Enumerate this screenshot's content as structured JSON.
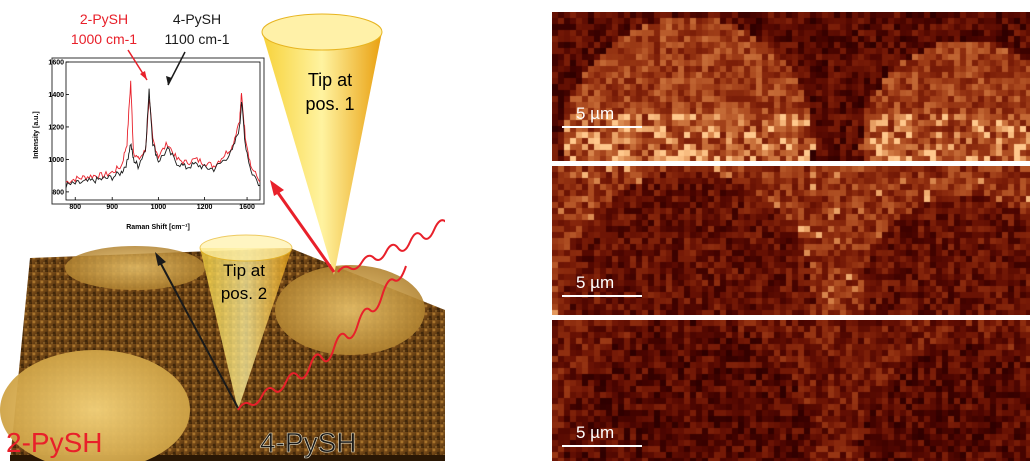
{
  "left_figure": {
    "annotation_2pysh_name": "2-PySH",
    "annotation_2pysh_peak": "1000 cm-1",
    "annotation_4pysh_name": "4-PySH",
    "annotation_4pysh_peak": "1100 cm-1",
    "tip_pos1_line1": "Tip at",
    "tip_pos1_line2": "pos. 1",
    "tip_pos2_line1": "Tip at",
    "tip_pos2_line2": "pos. 2",
    "region_label_left": "2-PySH",
    "region_label_right": "4-PySH",
    "colors": {
      "red": "#e8202a",
      "black": "#1a1a1a",
      "cone": "#f5b81c",
      "afm_dark": "#5a3a14"
    }
  },
  "chart_data": {
    "type": "line",
    "xlabel": "Raman Shift [cm⁻¹]",
    "ylabel": "Intensity [a.u.]",
    "xlim": [
      650,
      1700
    ],
    "ylim": [
      750,
      1600
    ],
    "x_ticks": [
      "800",
      "900",
      "1000",
      "1200",
      "1600"
    ],
    "y_ticks": [
      "800",
      "1000",
      "1200",
      "1400",
      "1600"
    ],
    "series": [
      {
        "color": "#e8202a",
        "x": [
          650,
          700,
          750,
          800,
          850,
          900,
          950,
          980,
          1000,
          1015,
          1040,
          1080,
          1100,
          1120,
          1150,
          1200,
          1250,
          1300,
          1350,
          1400,
          1450,
          1500,
          1550,
          1590,
          1600,
          1620,
          1650,
          1700
        ],
        "y": [
          860,
          880,
          890,
          900,
          900,
          920,
          960,
          1100,
          1480,
          1050,
          1000,
          1050,
          1380,
          1120,
          1020,
          1100,
          1000,
          980,
          1000,
          980,
          960,
          1020,
          1080,
          1250,
          1400,
          1150,
          960,
          860
        ]
      },
      {
        "color": "#1a1a1a",
        "x": [
          650,
          700,
          750,
          800,
          850,
          900,
          950,
          980,
          1000,
          1015,
          1040,
          1080,
          1100,
          1120,
          1150,
          1200,
          1250,
          1300,
          1350,
          1400,
          1450,
          1500,
          1550,
          1590,
          1600,
          1620,
          1650,
          1700
        ],
        "y": [
          840,
          850,
          860,
          870,
          880,
          890,
          920,
          980,
          1100,
          1000,
          960,
          1060,
          1420,
          1100,
          990,
          1060,
          980,
          950,
          970,
          950,
          940,
          990,
          1050,
          1200,
          1360,
          1100,
          930,
          840
        ]
      }
    ]
  },
  "maps": [
    {
      "scale_label": "5 µm",
      "brightness": 0.55
    },
    {
      "scale_label": "5 µm",
      "brightness": 0.5
    },
    {
      "scale_label": "5 µm",
      "brightness": 0.3
    }
  ]
}
